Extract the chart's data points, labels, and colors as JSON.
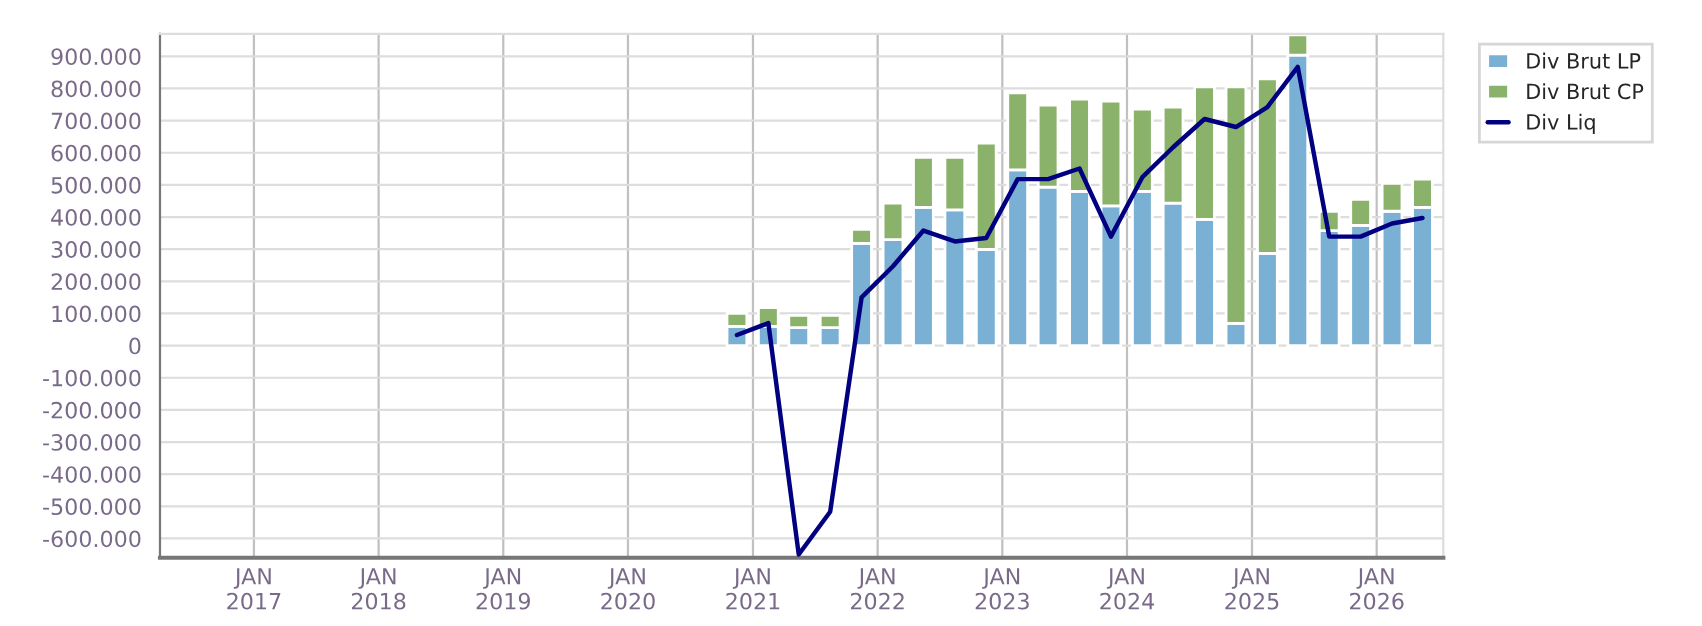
{
  "chart_data": {
    "type": "bar",
    "stacked": true,
    "x": [
      "2020-11-15",
      "2021-02-15",
      "2021-05-15",
      "2021-08-15",
      "2021-11-15",
      "2022-02-15",
      "2022-05-15",
      "2022-08-15",
      "2022-11-15",
      "2023-02-15",
      "2023-05-15",
      "2023-08-15",
      "2023-11-15",
      "2024-02-15",
      "2024-05-15",
      "2024-08-15",
      "2024-11-15",
      "2025-02-15",
      "2025-05-15",
      "2025-08-15",
      "2025-11-15",
      "2026-02-15",
      "2026-05-15"
    ],
    "series": [
      {
        "name": "Div Brut LP",
        "color": "#7ab0d4",
        "values": [
          60000,
          60000,
          56000,
          56000,
          318000,
          330000,
          430000,
          422000,
          299000,
          547000,
          493000,
          480000,
          435000,
          480000,
          443000,
          393000,
          69000,
          287000,
          904000,
          358000,
          374000,
          418000,
          430000
        ]
      },
      {
        "name": "Div Brut CP",
        "color": "#8bb26a",
        "values": [
          40000,
          58000,
          38000,
          38000,
          44000,
          113000,
          156000,
          164000,
          331000,
          239000,
          255000,
          287000,
          326000,
          256000,
          299000,
          412000,
          736000,
          543000,
          63000,
          60000,
          81000,
          87000,
          88000
        ]
      },
      {
        "name": "Div Liq",
        "type": "line",
        "color": "#000080",
        "values": [
          33000,
          70000,
          -650000,
          -517000,
          150000,
          247000,
          358000,
          324000,
          335000,
          518000,
          518000,
          551000,
          339000,
          524000,
          617000,
          705000,
          680000,
          742000,
          867000,
          339000,
          339000,
          380000,
          397000
        ]
      }
    ],
    "xlim": [
      "2016-04-01",
      "2026-07-15"
    ],
    "xticks": [
      {
        "value": "2017-01-01",
        "label": "JAN\n2017"
      },
      {
        "value": "2018-01-01",
        "label": "JAN\n2018"
      },
      {
        "value": "2019-01-01",
        "label": "JAN\n2019"
      },
      {
        "value": "2020-01-01",
        "label": "JAN\n2020"
      },
      {
        "value": "2021-01-01",
        "label": "JAN\n2021"
      },
      {
        "value": "2022-01-01",
        "label": "JAN\n2022"
      },
      {
        "value": "2023-01-01",
        "label": "JAN\n2023"
      },
      {
        "value": "2024-01-01",
        "label": "JAN\n2024"
      },
      {
        "value": "2025-01-01",
        "label": "JAN\n2025"
      },
      {
        "value": "2026-01-01",
        "label": "JAN\n2026"
      }
    ],
    "ylim": [
      -660000,
      970000
    ],
    "yticks": [
      {
        "value": -600000,
        "label": "-600.000"
      },
      {
        "value": -500000,
        "label": "-500.000"
      },
      {
        "value": -400000,
        "label": "-400.000"
      },
      {
        "value": -300000,
        "label": "-300.000"
      },
      {
        "value": -200000,
        "label": "-200.000"
      },
      {
        "value": -100000,
        "label": "-100.000"
      },
      {
        "value": 0,
        "label": "0"
      },
      {
        "value": 100000,
        "label": "100.000"
      },
      {
        "value": 200000,
        "label": "200.000"
      },
      {
        "value": 300000,
        "label": "300.000"
      },
      {
        "value": 400000,
        "label": "400.000"
      },
      {
        "value": 500000,
        "label": "500.000"
      },
      {
        "value": 600000,
        "label": "600.000"
      },
      {
        "value": 700000,
        "label": "700.000"
      },
      {
        "value": 800000,
        "label": "800.000"
      },
      {
        "value": 900000,
        "label": "900.000"
      }
    ],
    "grid": true,
    "legend": "top right",
    "line_style": "solid",
    "marker": "none"
  }
}
